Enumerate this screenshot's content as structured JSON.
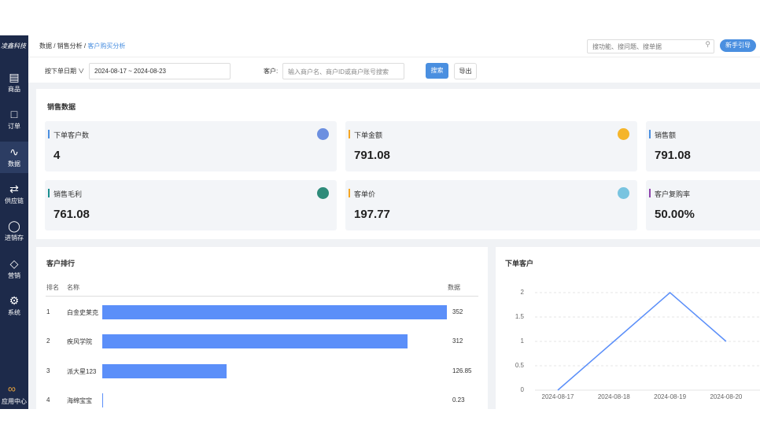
{
  "sidebar": {
    "brand": "凌鑫科技",
    "nav": [
      "商品",
      "订单",
      "数据",
      "供应链",
      "进销存",
      "营销",
      "系统"
    ],
    "app_center": "应用中心"
  },
  "header": {
    "breadcrumb": [
      "数据",
      "销售分析",
      "客户购买分析"
    ],
    "search_placeholder": "搜功能、搜问题、搜单据",
    "guide_button": "新手引导"
  },
  "filters": {
    "date_type": "按下单日期",
    "date_range": "2024-08-17 ~ 2024-08-23",
    "customer_label": "客户:",
    "customer_placeholder": "输入商户名、商户ID或商户账号搜索",
    "search_button": "搜索",
    "export_button": "导出"
  },
  "sales": {
    "title": "销售数据",
    "cards": [
      {
        "label": "下单客户数",
        "value": 4,
        "accent": "#4a8fe0",
        "icon": "#6c8fe0"
      },
      {
        "label": "下单金额",
        "value": 791.08,
        "accent": "#f5a623",
        "icon": "#f5b52b"
      },
      {
        "label": "销售额",
        "value": 791.08,
        "accent": "#4a8fe0"
      },
      {
        "label": "销售毛利",
        "value": 761.08,
        "accent": "#1a8f8f",
        "icon": "#2e8b7a"
      },
      {
        "label": "客单价",
        "value": 197.77,
        "accent": "#f5a623",
        "icon": "#79c4e0"
      },
      {
        "label": "客户复购率",
        "value": "50.00%",
        "accent": "#8e44ad"
      }
    ]
  },
  "ranking": {
    "title": "客户排行",
    "columns": [
      "排名",
      "名称",
      "数据"
    ],
    "color": "#5b8ff9",
    "rows": [
      {
        "rank": 1,
        "name": "白金史莱克",
        "value": 352
      },
      {
        "rank": 2,
        "name": "疾风学院",
        "value": 312
      },
      {
        "rank": 3,
        "name": "派大星123",
        "value": 126.85
      },
      {
        "rank": 4,
        "name": "海绵宝宝",
        "value": 0.23
      }
    ]
  },
  "chart_data": {
    "type": "line",
    "title": "下单客户",
    "x": [
      "2024-08-17",
      "2024-08-18",
      "2024-08-19",
      "2024-08-20"
    ],
    "values": [
      0,
      1,
      2,
      1
    ],
    "color": "#5b8ff9",
    "ylim": [
      0,
      2
    ],
    "yticks": [
      0,
      0.5,
      1,
      1.5,
      2
    ],
    "grid": true
  }
}
